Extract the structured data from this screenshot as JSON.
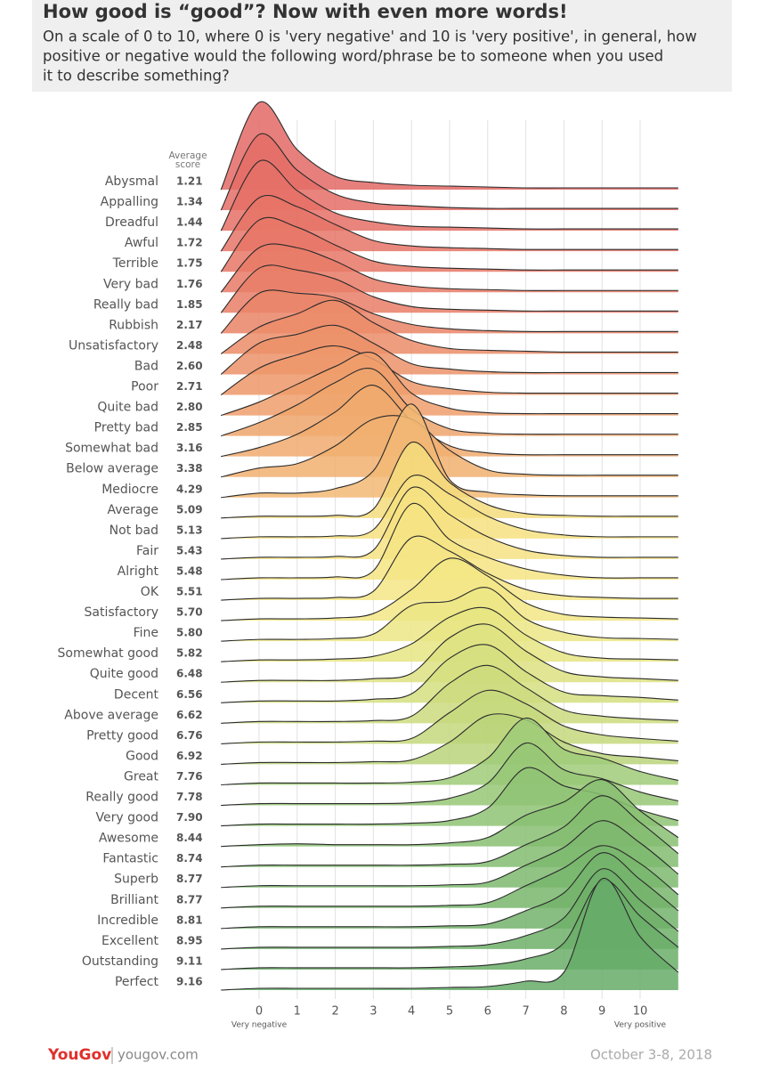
{
  "chart_data": {
    "type": "ridgeline",
    "title": "How good is “good”? Now with even more words!",
    "subtitle": [
      "On a scale of 0 to 10, where 0 is 'very negative' and 10 is 'very positive', in general, how",
      "positive or negative would the following word/phrase be to someone when you used",
      "it to describe something?"
    ],
    "score_header": [
      "Average",
      "score"
    ],
    "xlabel_left": "Very negative",
    "xlabel_right": "Very positive",
    "footer": {
      "brand": "YouGov",
      "site": "yougov.com",
      "date": "October 3-8, 2018"
    },
    "xlim": [
      -1,
      11
    ],
    "xticks": [
      0,
      1,
      2,
      3,
      4,
      5,
      6,
      7,
      8,
      9,
      10
    ],
    "grid": true,
    "x": [
      -1,
      0,
      1,
      2,
      3,
      4,
      5,
      6,
      7,
      8,
      9,
      10,
      11
    ],
    "categories": [
      "Abysmal",
      "Appalling",
      "Dreadful",
      "Awful",
      "Terrible",
      "Very bad",
      "Really bad",
      "Rubbish",
      "Unsatisfactory",
      "Bad",
      "Poor",
      "Quite bad",
      "Pretty bad",
      "Somewhat bad",
      "Below average",
      "Mediocre",
      "Average",
      "Not bad",
      "Fair",
      "Alright",
      "OK",
      "Satisfactory",
      "Fine",
      "Somewhat good",
      "Quite good",
      "Decent",
      "Above average",
      "Pretty good",
      "Good",
      "Great",
      "Really good",
      "Very good",
      "Awesome",
      "Fantastic",
      "Superb",
      "Brilliant",
      "Incredible",
      "Excellent",
      "Outstanding",
      "Perfect"
    ],
    "values": [
      1.21,
      1.34,
      1.44,
      1.72,
      1.75,
      1.76,
      1.85,
      2.17,
      2.48,
      2.6,
      2.71,
      2.8,
      2.85,
      3.16,
      3.38,
      4.29,
      5.09,
      5.13,
      5.43,
      5.48,
      5.51,
      5.7,
      5.8,
      5.82,
      6.48,
      6.56,
      6.62,
      6.76,
      6.92,
      7.76,
      7.78,
      7.9,
      8.44,
      8.74,
      8.77,
      8.77,
      8.81,
      8.95,
      9.11,
      9.16
    ],
    "value_labels": [
      "1.21",
      "1.34",
      "1.44",
      "1.72",
      "1.75",
      "1.76",
      "1.85",
      "2.17",
      "2.48",
      "2.60",
      "2.71",
      "2.80",
      "2.85",
      "3.16",
      "3.38",
      "4.29",
      "5.09",
      "5.13",
      "5.43",
      "5.48",
      "5.51",
      "5.70",
      "5.80",
      "5.82",
      "6.48",
      "6.56",
      "6.62",
      "6.76",
      "6.92",
      "7.76",
      "7.78",
      "7.90",
      "8.44",
      "8.74",
      "8.77",
      "8.77",
      "8.81",
      "8.95",
      "9.11",
      "9.16"
    ],
    "series": [
      {
        "color": "#e36a66",
        "values": [
          0,
          0.98,
          0.45,
          0.15,
          0.08,
          0.05,
          0.04,
          0.03,
          0.02,
          0.02,
          0.02,
          0.02,
          0.02
        ]
      },
      {
        "color": "#e46d66",
        "values": [
          0,
          0.85,
          0.45,
          0.18,
          0.08,
          0.05,
          0.03,
          0.02,
          0.02,
          0.02,
          0.02,
          0.02,
          0.02
        ]
      },
      {
        "color": "#e57066",
        "values": [
          0,
          0.78,
          0.45,
          0.2,
          0.1,
          0.05,
          0.04,
          0.03,
          0.02,
          0.02,
          0.02,
          0.02,
          0.02
        ]
      },
      {
        "color": "#e67466",
        "values": [
          0,
          0.6,
          0.5,
          0.3,
          0.12,
          0.06,
          0.04,
          0.03,
          0.02,
          0.02,
          0.02,
          0.02,
          0.02
        ]
      },
      {
        "color": "#e77766",
        "values": [
          0,
          0.58,
          0.5,
          0.3,
          0.12,
          0.06,
          0.04,
          0.03,
          0.02,
          0.02,
          0.02,
          0.02,
          0.02
        ]
      },
      {
        "color": "#e87a66",
        "values": [
          0,
          0.5,
          0.5,
          0.35,
          0.15,
          0.07,
          0.04,
          0.03,
          0.02,
          0.02,
          0.02,
          0.02,
          0.02
        ]
      },
      {
        "color": "#e97e67",
        "values": [
          0,
          0.5,
          0.48,
          0.38,
          0.18,
          0.07,
          0.04,
          0.03,
          0.02,
          0.02,
          0.02,
          0.02,
          0.02
        ]
      },
      {
        "color": "#ea8467",
        "values": [
          0,
          0.45,
          0.45,
          0.4,
          0.22,
          0.1,
          0.05,
          0.03,
          0.02,
          0.02,
          0.02,
          0.02,
          0.02
        ]
      },
      {
        "color": "#eb8c68",
        "values": [
          0,
          0.3,
          0.45,
          0.6,
          0.35,
          0.15,
          0.06,
          0.04,
          0.03,
          0.02,
          0.02,
          0.02,
          0.02
        ]
      },
      {
        "color": "#ec9269",
        "values": [
          0,
          0.35,
          0.45,
          0.55,
          0.35,
          0.12,
          0.06,
          0.03,
          0.02,
          0.02,
          0.02,
          0.02,
          0.02
        ]
      },
      {
        "color": "#ed986a",
        "values": [
          0,
          0.3,
          0.45,
          0.55,
          0.4,
          0.15,
          0.07,
          0.03,
          0.02,
          0.02,
          0.02,
          0.02,
          0.02
        ]
      },
      {
        "color": "#ee9e6b",
        "values": [
          0,
          0.15,
          0.35,
          0.55,
          0.7,
          0.25,
          0.08,
          0.03,
          0.02,
          0.02,
          0.02,
          0.02,
          0.02
        ]
      },
      {
        "color": "#efa46c",
        "values": [
          0,
          0.15,
          0.35,
          0.6,
          0.75,
          0.3,
          0.08,
          0.03,
          0.02,
          0.02,
          0.02,
          0.02,
          0.02
        ]
      },
      {
        "color": "#f0aa6e",
        "values": [
          0,
          0.1,
          0.25,
          0.5,
          0.8,
          0.4,
          0.12,
          0.04,
          0.02,
          0.02,
          0.02,
          0.02,
          0.02
        ]
      },
      {
        "color": "#f1b070",
        "values": [
          0,
          0.1,
          0.15,
          0.35,
          0.65,
          0.65,
          0.3,
          0.08,
          0.03,
          0.02,
          0.02,
          0.02,
          0.02
        ]
      },
      {
        "color": "#f2b874",
        "values": [
          0,
          0.05,
          0.05,
          0.1,
          0.3,
          1.05,
          0.2,
          0.06,
          0.03,
          0.02,
          0.02,
          0.02,
          0.02
        ]
      },
      {
        "color": "#f5dc7c",
        "values": [
          0,
          0.02,
          0.02,
          0.03,
          0.1,
          0.85,
          0.4,
          0.15,
          0.05,
          0.03,
          0.02,
          0.02,
          0.02
        ]
      },
      {
        "color": "#f6e080",
        "values": [
          0,
          0.02,
          0.02,
          0.03,
          0.1,
          0.7,
          0.5,
          0.25,
          0.1,
          0.04,
          0.02,
          0.02,
          0.02
        ]
      },
      {
        "color": "#f6e282",
        "values": [
          0,
          0.02,
          0.02,
          0.03,
          0.1,
          0.8,
          0.5,
          0.25,
          0.1,
          0.04,
          0.02,
          0.02,
          0.02
        ]
      },
      {
        "color": "#f6e484",
        "values": [
          0,
          0.02,
          0.02,
          0.03,
          0.1,
          0.85,
          0.45,
          0.25,
          0.12,
          0.05,
          0.02,
          0.02,
          0.02
        ]
      },
      {
        "color": "#f5e586",
        "values": [
          0,
          0.02,
          0.02,
          0.03,
          0.1,
          0.7,
          0.55,
          0.3,
          0.12,
          0.05,
          0.03,
          0.02,
          0.02
        ]
      },
      {
        "color": "#f2e686",
        "values": [
          0,
          0.02,
          0.02,
          0.03,
          0.08,
          0.35,
          0.7,
          0.5,
          0.2,
          0.07,
          0.04,
          0.03,
          0.02
        ]
      },
      {
        "color": "#ece685",
        "values": [
          0,
          0.02,
          0.02,
          0.03,
          0.08,
          0.4,
          0.45,
          0.6,
          0.25,
          0.1,
          0.04,
          0.03,
          0.02
        ]
      },
      {
        "color": "#e6e583",
        "values": [
          0,
          0.02,
          0.02,
          0.03,
          0.06,
          0.2,
          0.5,
          0.6,
          0.3,
          0.1,
          0.04,
          0.03,
          0.02
        ]
      },
      {
        "color": "#dde281",
        "values": [
          0,
          0.02,
          0.02,
          0.02,
          0.04,
          0.1,
          0.5,
          0.65,
          0.35,
          0.12,
          0.06,
          0.04,
          0.02
        ]
      },
      {
        "color": "#d5df80",
        "values": [
          0,
          0.02,
          0.02,
          0.02,
          0.04,
          0.1,
          0.5,
          0.65,
          0.35,
          0.12,
          0.08,
          0.06,
          0.03
        ]
      },
      {
        "color": "#cddb7e",
        "values": [
          0,
          0.02,
          0.02,
          0.02,
          0.03,
          0.08,
          0.45,
          0.65,
          0.4,
          0.15,
          0.08,
          0.05,
          0.03
        ]
      },
      {
        "color": "#c5d87c",
        "values": [
          0,
          0.02,
          0.02,
          0.02,
          0.03,
          0.06,
          0.35,
          0.6,
          0.45,
          0.2,
          0.1,
          0.06,
          0.03
        ]
      },
      {
        "color": "#bad47a",
        "values": [
          0,
          0.02,
          0.02,
          0.02,
          0.03,
          0.05,
          0.25,
          0.55,
          0.5,
          0.25,
          0.12,
          0.08,
          0.04
        ]
      },
      {
        "color": "#9fcb78",
        "values": [
          0,
          0.02,
          0.02,
          0.02,
          0.02,
          0.03,
          0.08,
          0.3,
          0.75,
          0.4,
          0.3,
          0.15,
          0.05
        ]
      },
      {
        "color": "#97c776",
        "values": [
          0,
          0.02,
          0.02,
          0.02,
          0.02,
          0.03,
          0.08,
          0.25,
          0.7,
          0.4,
          0.3,
          0.15,
          0.05
        ]
      },
      {
        "color": "#8fc374",
        "values": [
          0,
          0.02,
          0.02,
          0.02,
          0.02,
          0.03,
          0.06,
          0.2,
          0.65,
          0.45,
          0.35,
          0.18,
          0.06
        ]
      },
      {
        "color": "#88bf72",
        "values": [
          0,
          0.02,
          0.03,
          0.02,
          0.02,
          0.02,
          0.04,
          0.1,
          0.35,
          0.5,
          0.75,
          0.4,
          0.1
        ]
      },
      {
        "color": "#82bc70",
        "values": [
          0,
          0.02,
          0.02,
          0.02,
          0.02,
          0.02,
          0.03,
          0.06,
          0.25,
          0.45,
          0.8,
          0.5,
          0.15
        ]
      },
      {
        "color": "#7db96e",
        "values": [
          0,
          0.02,
          0.02,
          0.02,
          0.02,
          0.02,
          0.03,
          0.06,
          0.25,
          0.45,
          0.75,
          0.5,
          0.15
        ]
      },
      {
        "color": "#78b66c",
        "values": [
          0,
          0.02,
          0.02,
          0.02,
          0.02,
          0.02,
          0.03,
          0.06,
          0.25,
          0.45,
          0.7,
          0.5,
          0.15
        ]
      },
      {
        "color": "#73b36b",
        "values": [
          0,
          0.02,
          0.02,
          0.02,
          0.02,
          0.02,
          0.03,
          0.05,
          0.2,
          0.4,
          0.85,
          0.55,
          0.2
        ]
      },
      {
        "color": "#6eb06a",
        "values": [
          0,
          0.02,
          0.02,
          0.02,
          0.02,
          0.02,
          0.03,
          0.05,
          0.15,
          0.35,
          0.9,
          0.55,
          0.2
        ]
      },
      {
        "color": "#6aae69",
        "values": [
          0,
          0.02,
          0.02,
          0.02,
          0.02,
          0.02,
          0.03,
          0.05,
          0.12,
          0.3,
          1.0,
          0.6,
          0.25
        ]
      },
      {
        "color": "#66ac68",
        "values": [
          0,
          0.02,
          0.02,
          0.02,
          0.02,
          0.02,
          0.03,
          0.04,
          0.1,
          0.2,
          1.25,
          0.6,
          0.2
        ]
      }
    ]
  }
}
